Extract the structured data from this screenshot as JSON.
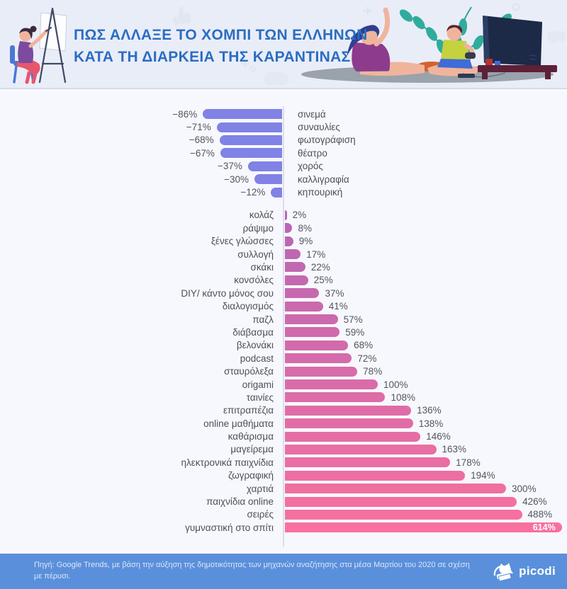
{
  "header": {
    "title_line1": "ΠΩΣ ΑΛΛΑΞΕ ΤΟ ΧΟΜΠΙ ΤΩΝ ΕΛΛΗΝΩΝ",
    "title_line2": "ΚΑΤΑ ΤΗ ΔΙΑΡΚΕΙΑ ΤΗΣ ΚΑΡΑΝΤΙΝΑΣ",
    "title_color": "#2b6dc1"
  },
  "chart_data": {
    "type": "bar",
    "orientation": "horizontal",
    "title": "ΠΩΣ ΑΛΛΑΞΕ ΤΟ ΧΟΜΠΙ ΤΩΝ ΕΛΛΗΝΩΝ ΚΑΤΑ ΤΗ ΔΙΑΡΚΕΙΑ ΤΗΣ ΚΑΡΑΝΤΙΝΑΣ",
    "unit": "%",
    "value_range": [
      -86,
      614
    ],
    "grid": false,
    "legend": false,
    "series": [
      {
        "name": "decreased-hobbies",
        "color": "#8082e5",
        "points": [
          {
            "label": "σινεμά",
            "value": -86
          },
          {
            "label": "συναυλίες",
            "value": -71
          },
          {
            "label": "φωτογράφιση",
            "value": -68
          },
          {
            "label": "θέατρο",
            "value": -67
          },
          {
            "label": "χορός",
            "value": -37
          },
          {
            "label": "καλλιγραφία",
            "value": -30
          },
          {
            "label": "κηπουρική",
            "value": -12
          }
        ]
      },
      {
        "name": "increased-hobbies",
        "color_start": "#b766b5",
        "color_end": "#f8709e",
        "points": [
          {
            "label": "κολάζ",
            "value": 2
          },
          {
            "label": "ράψιμο",
            "value": 8
          },
          {
            "label": "ξένες γλώσσες",
            "value": 9
          },
          {
            "label": "συλλογή",
            "value": 17
          },
          {
            "label": "σκάκι",
            "value": 22
          },
          {
            "label": "κονσόλες",
            "value": 25
          },
          {
            "label": "DIY/ κάντο μόνος σου",
            "value": 37
          },
          {
            "label": "διαλογισμός",
            "value": 41
          },
          {
            "label": "παζλ",
            "value": 57
          },
          {
            "label": "διάβασμα",
            "value": 59
          },
          {
            "label": "βελονάκι",
            "value": 68
          },
          {
            "label": "podcast",
            "value": 72
          },
          {
            "label": "σταυρόλεξα",
            "value": 78
          },
          {
            "label": "origami",
            "value": 100
          },
          {
            "label": "ταινίες",
            "value": 108
          },
          {
            "label": "επιτραπέζια",
            "value": 136
          },
          {
            "label": "online μαθήματα",
            "value": 138
          },
          {
            "label": "καθάρισμα",
            "value": 146
          },
          {
            "label": "μαγείρεμα",
            "value": 163
          },
          {
            "label": "ηλεκτρονικά παιχνίδια",
            "value": 178
          },
          {
            "label": "ζωγραφική",
            "value": 194
          },
          {
            "label": "χαρτιά",
            "value": 300
          },
          {
            "label": "παιχνίδια online",
            "value": 426
          },
          {
            "label": "σειρές",
            "value": 488
          },
          {
            "label": "γυμναστική στο σπίτι",
            "value": 614,
            "label_inside": true
          }
        ]
      }
    ]
  },
  "footer": {
    "source_text": "Πηγή: Google Trends, με βάση την αύξηση της δημοτικότητας των μηχανών αναζήτησης στα μέσα Μαρτίου του 2020 σε σχέση με πέρυσι.",
    "brand": "picodi"
  }
}
